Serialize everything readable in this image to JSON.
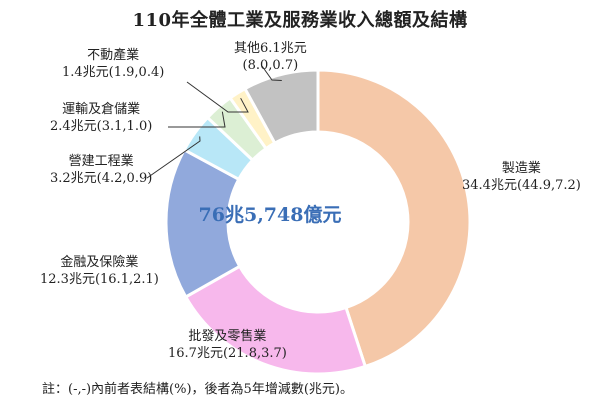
{
  "title": "110年全體工業及服務業收入總額及結構",
  "center_total": "76兆5,748億元",
  "note": "註：(-,-)內前者表結構(%)，後者為5年增減數(兆元)。",
  "colors": {
    "manufacturing": "#f5c8a8",
    "wholesale_retail": "#f7b8ec",
    "finance": "#91a9dc",
    "construction": "#b8e7f7",
    "transport": "#dcefd4",
    "real_estate": "#fff2c7",
    "other": "#c2c2c2",
    "center_text": "#3a6eb6"
  },
  "chart_data": {
    "type": "pie",
    "variant": "donut",
    "title": "110年全體工業及服務業收入總額及結構",
    "center_label": "76兆5,748億元",
    "slices": [
      {
        "name": "製造業",
        "value": 34.4,
        "share_pct": 44.9,
        "change_5yr": 7.2,
        "revenue_label": "34.4兆元(44.9,7.2)",
        "color_key": "manufacturing"
      },
      {
        "name": "批發及零售業",
        "value": 16.7,
        "share_pct": 21.8,
        "change_5yr": 3.7,
        "revenue_label": "16.7兆元(21.8,3.7)",
        "color_key": "wholesale_retail"
      },
      {
        "name": "金融及保險業",
        "value": 12.3,
        "share_pct": 16.1,
        "change_5yr": 2.1,
        "revenue_label": "12.3兆元(16.1,2.1)",
        "color_key": "finance"
      },
      {
        "name": "營建工程業",
        "value": 3.2,
        "share_pct": 4.2,
        "change_5yr": 0.9,
        "revenue_label": "3.2兆元(4.2,0.9)",
        "color_key": "construction"
      },
      {
        "name": "運輸及倉儲業",
        "value": 2.4,
        "share_pct": 3.1,
        "change_5yr": 1.0,
        "revenue_label": "2.4兆元(3.1,1.0)",
        "color_key": "transport"
      },
      {
        "name": "不動產業",
        "value": 1.4,
        "share_pct": 1.9,
        "change_5yr": 0.4,
        "revenue_label": "1.4兆元(1.9,0.4)",
        "color_key": "real_estate"
      },
      {
        "name": "其他",
        "value": 6.1,
        "share_pct": 8.0,
        "change_5yr": 0.7,
        "revenue_label": "6.1兆元",
        "extra_label": "(8.0,0.7)",
        "color_key": "other"
      }
    ],
    "legend": "none"
  }
}
